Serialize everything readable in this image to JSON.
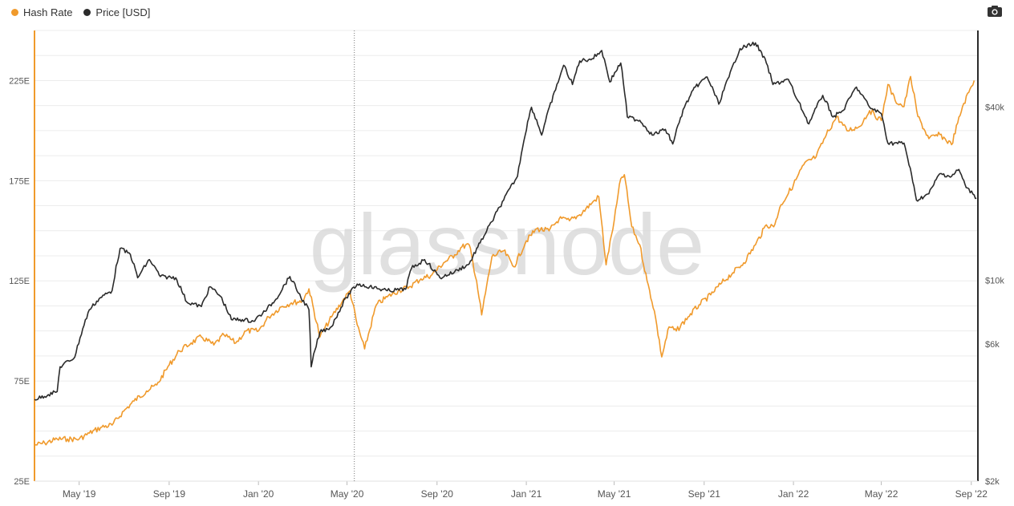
{
  "legend": {
    "hash_rate": "Hash Rate",
    "price": "Price [USD]"
  },
  "watermark": "glassnode",
  "colors": {
    "hash_rate": "#f09a2c",
    "price": "#2b2b2b",
    "grid": "#ececec",
    "axis_text": "#555555"
  },
  "chart_data": {
    "type": "line",
    "x_axis": {
      "type": "date",
      "range": [
        "2019-03-01",
        "2022-09-10"
      ],
      "ticks": [
        {
          "date": "2019-05-01",
          "label": "May '19"
        },
        {
          "date": "2019-09-01",
          "label": "Sep '19"
        },
        {
          "date": "2020-01-01",
          "label": "Jan '20"
        },
        {
          "date": "2020-05-01",
          "label": "May '20"
        },
        {
          "date": "2020-09-01",
          "label": "Sep '20"
        },
        {
          "date": "2021-01-01",
          "label": "Jan '21"
        },
        {
          "date": "2021-05-01",
          "label": "May '21"
        },
        {
          "date": "2021-09-01",
          "label": "Sep '21"
        },
        {
          "date": "2022-01-01",
          "label": "Jan '22"
        },
        {
          "date": "2022-05-01",
          "label": "May '22"
        },
        {
          "date": "2022-09-01",
          "label": "Sep '22"
        }
      ]
    },
    "y_left": {
      "scale": "linear",
      "range": [
        25,
        250
      ],
      "ticks": [
        {
          "value": 25,
          "label": "25E"
        },
        {
          "value": 75,
          "label": "75E"
        },
        {
          "value": 125,
          "label": "125E"
        },
        {
          "value": 175,
          "label": "175E"
        },
        {
          "value": 225,
          "label": "225E"
        }
      ]
    },
    "y_right": {
      "scale": "log",
      "range": [
        2000,
        74000
      ],
      "ticks": [
        {
          "value": 2000,
          "label": "$2k"
        },
        {
          "value": 6000,
          "label": "$6k"
        },
        {
          "value": 10000,
          "label": "$10k"
        },
        {
          "value": 40000,
          "label": "$40k"
        }
      ]
    },
    "grid": true,
    "legend_position": "top-left",
    "marker_line_date": "2020-05-11",
    "series": [
      {
        "name": "Hash Rate",
        "axis": "left",
        "points": [
          [
            "2019-03-01",
            43
          ],
          [
            "2019-03-15",
            44
          ],
          [
            "2019-04-01",
            46
          ],
          [
            "2019-04-15",
            46
          ],
          [
            "2019-05-01",
            46
          ],
          [
            "2019-05-15",
            49
          ],
          [
            "2019-06-01",
            52
          ],
          [
            "2019-06-15",
            53
          ],
          [
            "2019-07-01",
            60
          ],
          [
            "2019-07-15",
            65
          ],
          [
            "2019-08-01",
            70
          ],
          [
            "2019-08-15",
            73
          ],
          [
            "2019-09-01",
            83
          ],
          [
            "2019-09-15",
            90
          ],
          [
            "2019-10-01",
            94
          ],
          [
            "2019-10-15",
            97
          ],
          [
            "2019-11-01",
            93
          ],
          [
            "2019-11-15",
            98
          ],
          [
            "2019-12-01",
            94
          ],
          [
            "2019-12-15",
            100
          ],
          [
            "2020-01-01",
            100
          ],
          [
            "2020-01-15",
            107
          ],
          [
            "2020-02-01",
            112
          ],
          [
            "2020-02-15",
            114
          ],
          [
            "2020-03-01",
            115
          ],
          [
            "2020-03-10",
            121
          ],
          [
            "2020-03-25",
            97
          ],
          [
            "2020-04-10",
            107
          ],
          [
            "2020-04-25",
            115
          ],
          [
            "2020-05-05",
            120
          ],
          [
            "2020-05-15",
            103
          ],
          [
            "2020-05-25",
            91
          ],
          [
            "2020-06-10",
            113
          ],
          [
            "2020-06-25",
            117
          ],
          [
            "2020-07-10",
            120
          ],
          [
            "2020-07-25",
            122
          ],
          [
            "2020-08-10",
            126
          ],
          [
            "2020-08-25",
            128
          ],
          [
            "2020-09-10",
            134
          ],
          [
            "2020-09-25",
            138
          ],
          [
            "2020-10-05",
            142
          ],
          [
            "2020-10-15",
            143
          ],
          [
            "2020-10-25",
            125
          ],
          [
            "2020-11-01",
            108
          ],
          [
            "2020-11-15",
            137
          ],
          [
            "2020-12-01",
            140
          ],
          [
            "2020-12-15",
            132
          ],
          [
            "2021-01-01",
            145
          ],
          [
            "2021-01-15",
            151
          ],
          [
            "2021-02-01",
            150
          ],
          [
            "2021-02-15",
            156
          ],
          [
            "2021-03-01",
            155
          ],
          [
            "2021-03-15",
            158
          ],
          [
            "2021-04-01",
            164
          ],
          [
            "2021-04-10",
            167
          ],
          [
            "2021-04-20",
            133
          ],
          [
            "2021-05-01",
            155
          ],
          [
            "2021-05-10",
            176
          ],
          [
            "2021-05-15",
            178
          ],
          [
            "2021-05-25",
            152
          ],
          [
            "2021-06-05",
            143
          ],
          [
            "2021-06-15",
            125
          ],
          [
            "2021-06-25",
            110
          ],
          [
            "2021-07-05",
            87
          ],
          [
            "2021-07-15",
            102
          ],
          [
            "2021-07-25",
            100
          ],
          [
            "2021-08-10",
            107
          ],
          [
            "2021-08-25",
            113
          ],
          [
            "2021-09-10",
            118
          ],
          [
            "2021-09-25",
            124
          ],
          [
            "2021-10-10",
            129
          ],
          [
            "2021-10-25",
            134
          ],
          [
            "2021-11-10",
            143
          ],
          [
            "2021-11-25",
            153
          ],
          [
            "2021-12-05",
            152
          ],
          [
            "2021-12-15",
            163
          ],
          [
            "2022-01-01",
            173
          ],
          [
            "2022-01-15",
            183
          ],
          [
            "2022-02-01",
            187
          ],
          [
            "2022-02-15",
            198
          ],
          [
            "2022-03-01",
            207
          ],
          [
            "2022-03-15",
            200
          ],
          [
            "2022-04-01",
            202
          ],
          [
            "2022-04-15",
            210
          ],
          [
            "2022-05-01",
            205
          ],
          [
            "2022-05-10",
            223
          ],
          [
            "2022-05-20",
            215
          ],
          [
            "2022-06-01",
            212
          ],
          [
            "2022-06-10",
            227
          ],
          [
            "2022-06-20",
            207
          ],
          [
            "2022-07-05",
            196
          ],
          [
            "2022-07-20",
            198
          ],
          [
            "2022-08-05",
            193
          ],
          [
            "2022-08-20",
            212
          ],
          [
            "2022-09-01",
            222
          ],
          [
            "2022-09-05",
            225
          ]
        ]
      },
      {
        "name": "Price [USD]",
        "axis": "right",
        "points": [
          [
            "2019-03-01",
            3850
          ],
          [
            "2019-03-20",
            4000
          ],
          [
            "2019-04-01",
            4100
          ],
          [
            "2019-04-05",
            5000
          ],
          [
            "2019-04-25",
            5400
          ],
          [
            "2019-05-15",
            7900
          ],
          [
            "2019-05-30",
            8700
          ],
          [
            "2019-06-15",
            9200
          ],
          [
            "2019-06-26",
            12900
          ],
          [
            "2019-07-10",
            12300
          ],
          [
            "2019-07-20",
            10200
          ],
          [
            "2019-08-05",
            11800
          ],
          [
            "2019-08-20",
            10300
          ],
          [
            "2019-09-10",
            10200
          ],
          [
            "2019-09-25",
            8400
          ],
          [
            "2019-10-15",
            8100
          ],
          [
            "2019-10-27",
            9500
          ],
          [
            "2019-11-10",
            8800
          ],
          [
            "2019-11-25",
            7300
          ],
          [
            "2019-12-10",
            7300
          ],
          [
            "2019-12-25",
            7200
          ],
          [
            "2020-01-10",
            7800
          ],
          [
            "2020-01-25",
            8600
          ],
          [
            "2020-02-13",
            10300
          ],
          [
            "2020-02-28",
            8700
          ],
          [
            "2020-03-10",
            7900
          ],
          [
            "2020-03-13",
            5000
          ],
          [
            "2020-03-25",
            6600
          ],
          [
            "2020-04-10",
            6900
          ],
          [
            "2020-04-30",
            8700
          ],
          [
            "2020-05-15",
            9700
          ],
          [
            "2020-06-01",
            9500
          ],
          [
            "2020-06-25",
            9200
          ],
          [
            "2020-07-20",
            9300
          ],
          [
            "2020-07-28",
            11000
          ],
          [
            "2020-08-15",
            11800
          ],
          [
            "2020-09-05",
            10200
          ],
          [
            "2020-09-25",
            10700
          ],
          [
            "2020-10-15",
            11400
          ],
          [
            "2020-10-30",
            13500
          ],
          [
            "2020-11-15",
            16000
          ],
          [
            "2020-12-01",
            19000
          ],
          [
            "2020-12-20",
            23000
          ],
          [
            "2021-01-08",
            40000
          ],
          [
            "2021-01-22",
            32000
          ],
          [
            "2021-02-10",
            46000
          ],
          [
            "2021-02-21",
            56000
          ],
          [
            "2021-03-05",
            48000
          ],
          [
            "2021-03-15",
            58000
          ],
          [
            "2021-04-01",
            59000
          ],
          [
            "2021-04-14",
            63000
          ],
          [
            "2021-04-25",
            49000
          ],
          [
            "2021-05-10",
            57000
          ],
          [
            "2021-05-19",
            37000
          ],
          [
            "2021-06-05",
            36000
          ],
          [
            "2021-06-22",
            32000
          ],
          [
            "2021-07-10",
            33500
          ],
          [
            "2021-07-20",
            29800
          ],
          [
            "2021-08-05",
            40000
          ],
          [
            "2021-08-20",
            47000
          ],
          [
            "2021-09-05",
            51000
          ],
          [
            "2021-09-21",
            41000
          ],
          [
            "2021-10-05",
            51000
          ],
          [
            "2021-10-20",
            64000
          ],
          [
            "2021-11-10",
            67000
          ],
          [
            "2021-11-25",
            57000
          ],
          [
            "2021-12-04",
            48000
          ],
          [
            "2021-12-25",
            50000
          ],
          [
            "2022-01-05",
            43000
          ],
          [
            "2022-01-22",
            35000
          ],
          [
            "2022-02-10",
            44000
          ],
          [
            "2022-02-24",
            37000
          ],
          [
            "2022-03-10",
            39000
          ],
          [
            "2022-03-28",
            47000
          ],
          [
            "2022-04-15",
            40000
          ],
          [
            "2022-05-01",
            38000
          ],
          [
            "2022-05-10",
            30000
          ],
          [
            "2022-06-01",
            30000
          ],
          [
            "2022-06-13",
            22000
          ],
          [
            "2022-06-18",
            19000
          ],
          [
            "2022-07-05",
            20000
          ],
          [
            "2022-07-20",
            23500
          ],
          [
            "2022-08-05",
            23000
          ],
          [
            "2022-08-15",
            24300
          ],
          [
            "2022-08-25",
            21000
          ],
          [
            "2022-09-05",
            19800
          ],
          [
            "2022-09-08",
            19300
          ]
        ]
      }
    ]
  }
}
